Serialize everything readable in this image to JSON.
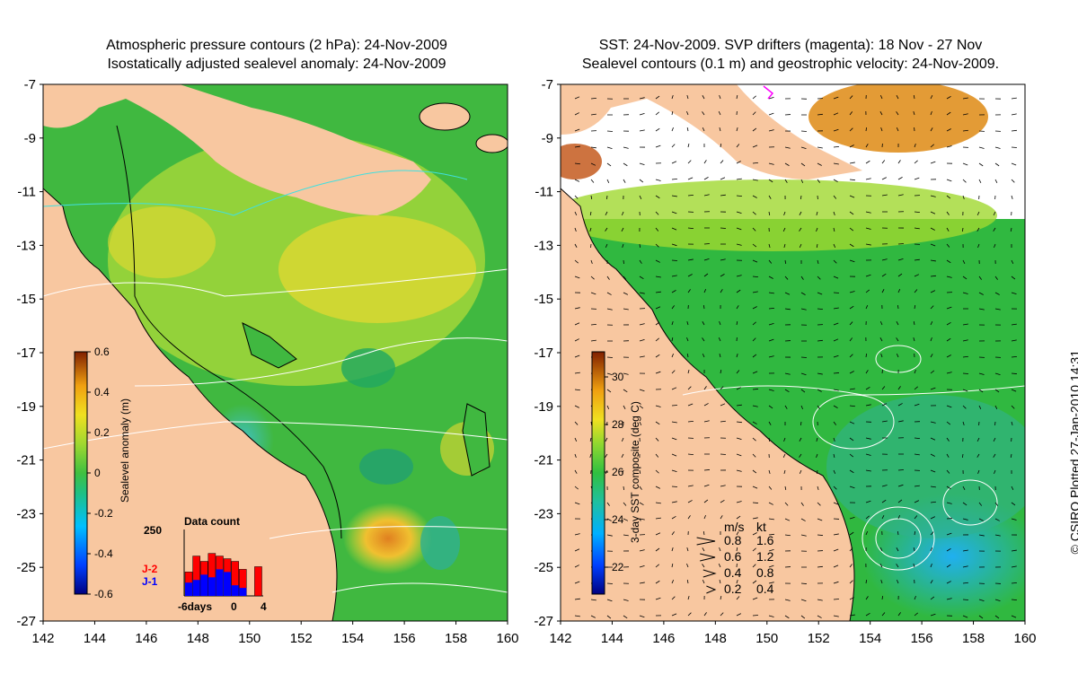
{
  "left_panel": {
    "title_line1": "Atmospheric pressure contours (2 hPa): 24-Nov-2009",
    "title_line2": "Isostatically adjusted sealevel anomaly: 24-Nov-2009",
    "colorbar": {
      "label": "Sealevel anomaly (m)",
      "ticks": [
        "0.6",
        "0.4",
        "0.2",
        "0",
        "-0.2",
        "-0.4",
        "-0.6"
      ]
    },
    "data_count": {
      "title": "Data count",
      "y_max": "250",
      "x_labels": [
        "-6days",
        "0",
        "4"
      ],
      "series": [
        {
          "name": "J-2",
          "color": "#ff0000"
        },
        {
          "name": "J-1",
          "color": "#0000ff"
        }
      ],
      "j2_counts": [
        90,
        150,
        130,
        160,
        150,
        140,
        130,
        100,
        0,
        110
      ],
      "j1_counts": [
        50,
        60,
        80,
        70,
        100,
        90,
        40,
        30,
        0,
        0
      ]
    }
  },
  "right_panel": {
    "title_line1": "SST: 24-Nov-2009. SVP drifters (magenta): 18 Nov - 27 Nov",
    "title_line2": "Sealevel contours (0.1 m) and geostrophic velocity: 24-Nov-2009.",
    "colorbar": {
      "label": "3-day SST composite (deg C)",
      "ticks": [
        "30",
        "28",
        "26",
        "24",
        "22"
      ]
    },
    "velocity_legend": {
      "header_ms": "m/s",
      "header_kt": "kt",
      "rows": [
        {
          "ms": "0.8",
          "kt": "1.6"
        },
        {
          "ms": "0.6",
          "kt": "1.2"
        },
        {
          "ms": "0.4",
          "kt": "0.8"
        },
        {
          "ms": "0.2",
          "kt": "0.4"
        }
      ]
    }
  },
  "axes": {
    "x_ticks": [
      "142",
      "144",
      "146",
      "148",
      "150",
      "152",
      "154",
      "156",
      "158",
      "160"
    ],
    "y_ticks": [
      "-7",
      "-9",
      "-11",
      "-13",
      "-15",
      "-17",
      "-19",
      "-21",
      "-23",
      "-25",
      "-27"
    ],
    "x_range": [
      142,
      160
    ],
    "y_range": [
      -27,
      -7
    ]
  },
  "credit": "© CSIRO Plotted 27-Jan-2010 14:31",
  "colors": {
    "land": "#f8c7a0",
    "sea_green": "#3fbf3f",
    "warm_yellow": "#e0e030",
    "warm_orange": "#e09020"
  }
}
